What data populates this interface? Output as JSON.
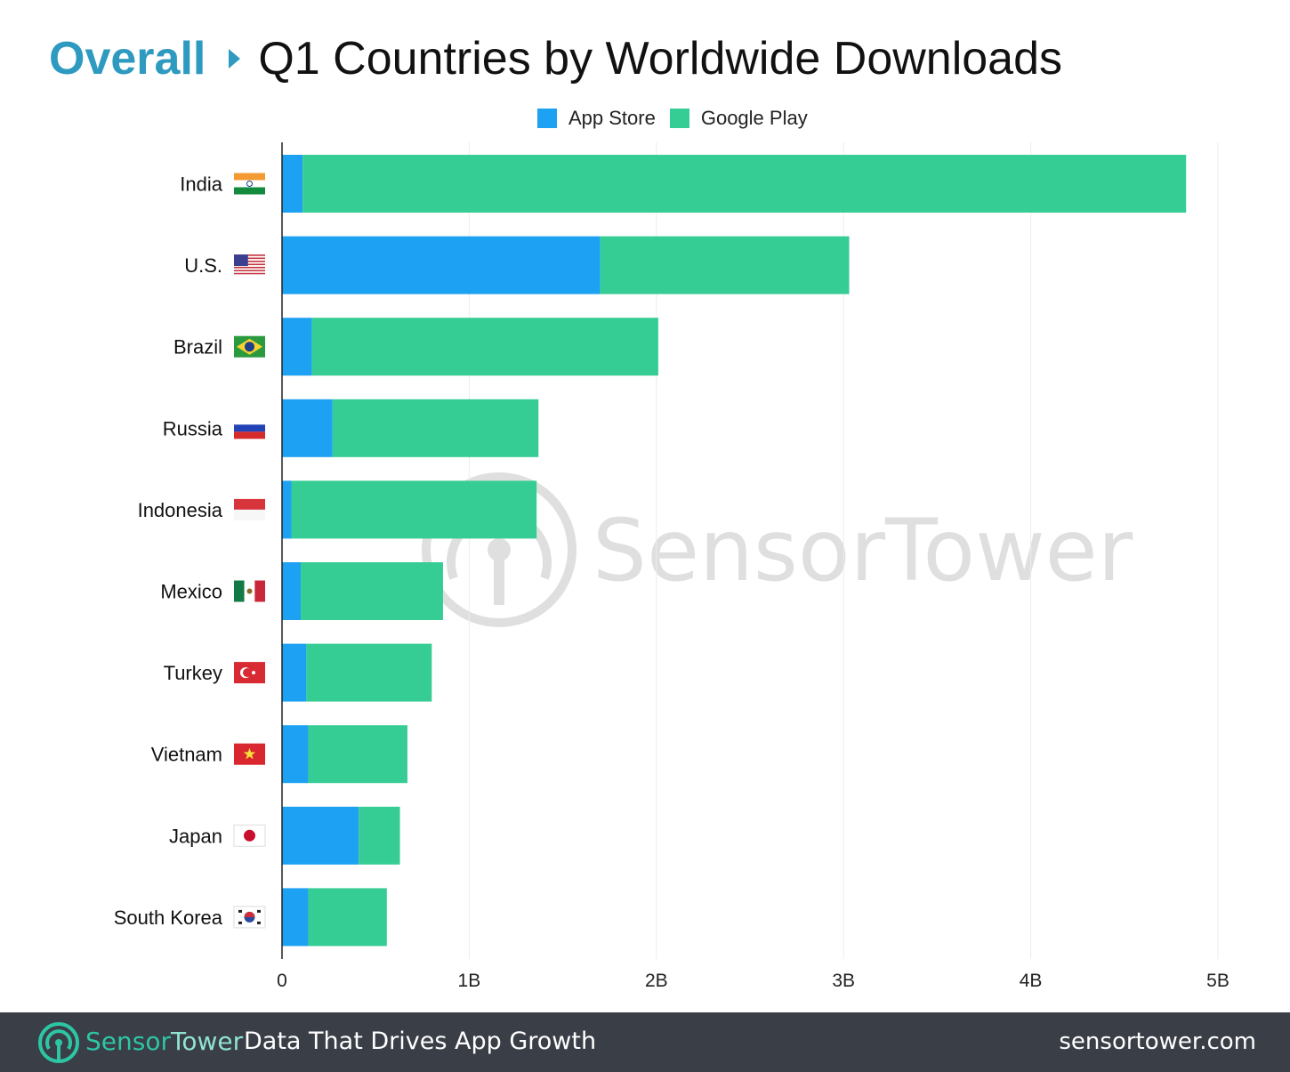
{
  "header": {
    "section": "Overall",
    "title": "Q1 Countries by Worldwide Downloads"
  },
  "legend": [
    {
      "label": "App Store",
      "color": "#1da1f2"
    },
    {
      "label": "Google Play",
      "color": "#36cd94"
    }
  ],
  "watermark": "SensorTower",
  "chart_data": {
    "type": "bar",
    "orientation": "horizontal",
    "stacked": true,
    "title": "Q1 Countries by Worldwide Downloads",
    "categories": [
      "India",
      "U.S.",
      "Brazil",
      "Russia",
      "Indonesia",
      "Mexico",
      "Turkey",
      "Vietnam",
      "Japan",
      "South Korea"
    ],
    "category_flag_icons": [
      "india-flag-icon",
      "us-flag-icon",
      "brazil-flag-icon",
      "russia-flag-icon",
      "indonesia-flag-icon",
      "mexico-flag-icon",
      "turkey-flag-icon",
      "vietnam-flag-icon",
      "japan-flag-icon",
      "south-korea-flag-icon"
    ],
    "series": [
      {
        "name": "App Store",
        "color": "#1da1f2",
        "values": [
          0.11,
          1.7,
          0.16,
          0.27,
          0.05,
          0.1,
          0.13,
          0.14,
          0.41,
          0.14
        ]
      },
      {
        "name": "Google Play",
        "color": "#36cd94",
        "values": [
          4.72,
          1.33,
          1.85,
          1.1,
          1.31,
          0.76,
          0.67,
          0.53,
          0.22,
          0.42
        ]
      }
    ],
    "xlim": [
      0,
      5
    ],
    "xticks": [
      0,
      1,
      2,
      3,
      4,
      5
    ],
    "xtick_labels": [
      "0",
      "1B",
      "2B",
      "3B",
      "4B",
      "5B"
    ],
    "grid": "vertical",
    "legend_position": "top-center"
  },
  "footer": {
    "brand_part1": "Sensor",
    "brand_part2": "Tower",
    "tagline": "Data That Drives App Growth",
    "url": "sensortower.com"
  }
}
